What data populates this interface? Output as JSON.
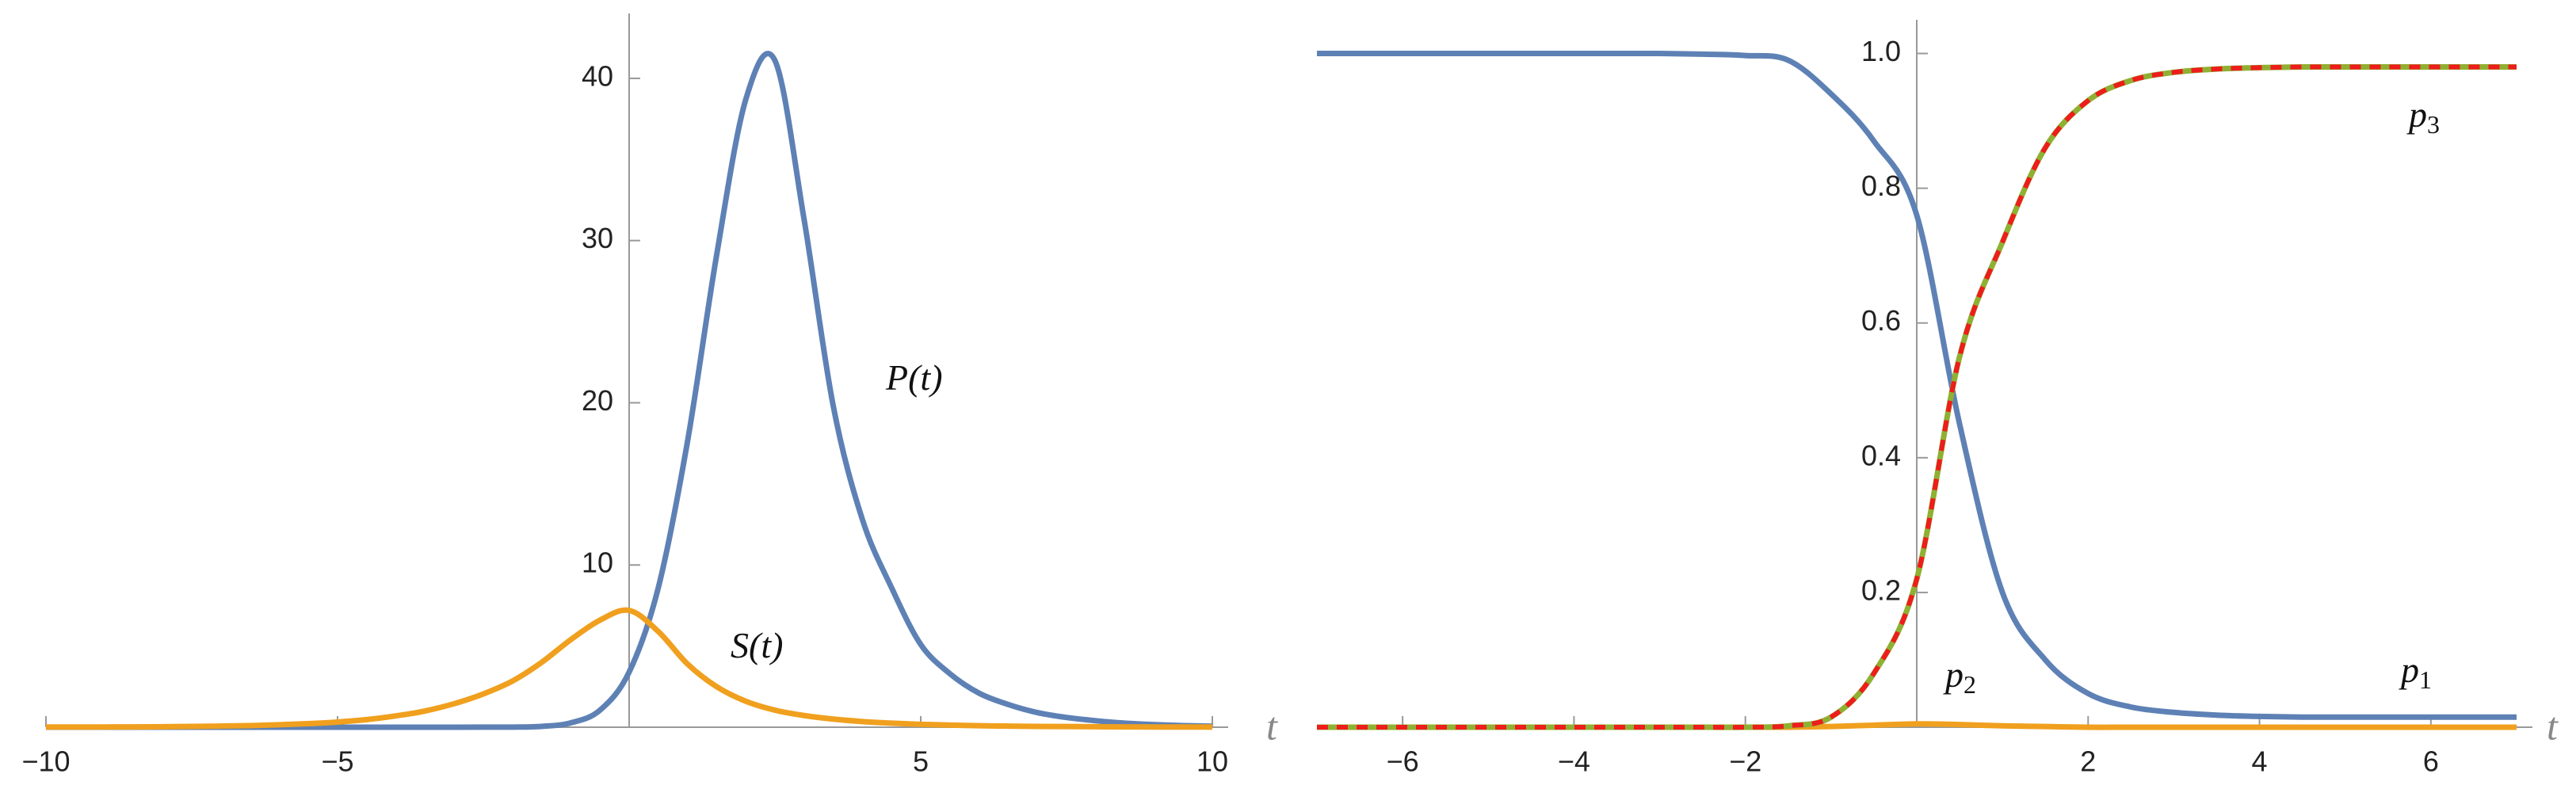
{
  "chart_data": [
    {
      "type": "line",
      "x": [
        -10,
        -9.5,
        -9,
        -8.5,
        -8,
        -7.5,
        -7,
        -6.5,
        -6,
        -5.5,
        -5,
        -4.5,
        -4,
        -3.5,
        -3,
        -2.5,
        -2,
        -1.5,
        -1,
        -0.5,
        0,
        0.5,
        1,
        1.5,
        2,
        2.5,
        3,
        3.5,
        4,
        4.5,
        5,
        5.5,
        6,
        6.5,
        7,
        7.5,
        8,
        8.5,
        9,
        9.5,
        10
      ],
      "series": [
        {
          "color": "#5e81b5",
          "values": [
            0,
            0,
            0,
            0,
            0,
            0,
            0,
            0,
            0,
            0,
            0,
            0,
            0,
            0.001,
            0.002,
            0.004,
            0.009,
            0.05,
            0.27,
            1.05,
            3.4,
            8.6,
            17.6,
            29.1,
            38.7,
            41.1,
            31.3,
            19.8,
            12.8,
            8.6,
            5.1,
            3.3,
            2.1,
            1.4,
            0.9,
            0.6,
            0.4,
            0.25,
            0.16,
            0.1,
            0.06
          ]
        },
        {
          "color": "#f0a01e",
          "values": [
            0.01,
            0.01,
            0.015,
            0.02,
            0.03,
            0.05,
            0.07,
            0.1,
            0.15,
            0.22,
            0.32,
            0.47,
            0.7,
            1.0,
            1.45,
            2.05,
            2.85,
            4.0,
            5.4,
            6.6,
            7.2,
            5.9,
            3.9,
            2.5,
            1.6,
            1.05,
            0.72,
            0.5,
            0.35,
            0.25,
            0.18,
            0.13,
            0.09,
            0.07,
            0.05,
            0.04,
            0.03,
            0.02,
            0.015,
            0.01,
            0.01
          ]
        }
      ],
      "xlim": [
        -10,
        10
      ],
      "ylim": [
        0,
        44
      ],
      "xticks": [
        {
          "value": -10,
          "label": "−10"
        },
        {
          "value": -5,
          "label": "−5"
        },
        5,
        10
      ],
      "yticks": [
        10,
        20,
        30,
        40
      ],
      "x_label": "t",
      "annotations": [
        {
          "text": "P(t)"
        },
        {
          "text": "S(t)"
        }
      ]
    },
    {
      "type": "line",
      "x": [
        -7,
        -6.5,
        -6,
        -5.5,
        -5,
        -4.5,
        -4,
        -3.5,
        -3,
        -2.5,
        -2,
        -1.5,
        -1,
        -0.5,
        0,
        0.5,
        1,
        1.5,
        2,
        2.5,
        3,
        3.5,
        4,
        4.5,
        5,
        5.5,
        6,
        6.5,
        7
      ],
      "series": [
        {
          "color": "#5e81b5",
          "values": [
            1,
            1,
            1,
            1,
            1,
            1,
            1,
            1,
            1,
            0.999,
            0.997,
            0.99,
            0.94,
            0.87,
            0.76,
            0.45,
            0.2,
            0.1,
            0.05,
            0.03,
            0.022,
            0.018,
            0.016,
            0.015,
            0.015,
            0.015,
            0.015,
            0.015,
            0.015
          ]
        },
        {
          "color": "#f0a01e",
          "values": [
            0,
            0,
            0,
            0,
            0,
            0,
            0,
            0,
            0,
            0,
            0,
            0,
            0.001,
            0.003,
            0.005,
            0.004,
            0.002,
            0.001,
            0,
            0,
            0,
            0,
            0,
            0,
            0,
            0,
            0,
            0,
            0
          ]
        },
        {
          "color": "#8fb032",
          "values": [
            0,
            0,
            0,
            0,
            0,
            0,
            0,
            0,
            0,
            0,
            0,
            0.002,
            0.015,
            0.08,
            0.22,
            0.55,
            0.72,
            0.86,
            0.93,
            0.96,
            0.972,
            0.977,
            0.979,
            0.98,
            0.98,
            0.98,
            0.98,
            0.98,
            0.98
          ]
        },
        {
          "color": "#ee1c1c",
          "dashed": true,
          "values": [
            0,
            0,
            0,
            0,
            0,
            0,
            0,
            0,
            0,
            0,
            0,
            0.002,
            0.015,
            0.08,
            0.22,
            0.55,
            0.72,
            0.86,
            0.93,
            0.96,
            0.972,
            0.977,
            0.979,
            0.98,
            0.98,
            0.98,
            0.98,
            0.98,
            0.98
          ]
        }
      ],
      "xlim": [
        -7,
        7
      ],
      "ylim": [
        0,
        1.05
      ],
      "xticks": [
        {
          "value": -6,
          "label": "−6"
        },
        {
          "value": -4,
          "label": "−4"
        },
        {
          "value": -2,
          "label": "−2"
        },
        2,
        4,
        6
      ],
      "yticks": [
        0.2,
        0.4,
        0.6,
        0.8,
        {
          "value": 1,
          "label": "1.0"
        }
      ],
      "x_label": "t",
      "annotations": [
        {
          "text": "p",
          "subscript": "3"
        },
        {
          "text": "p",
          "subscript": "2"
        },
        {
          "text": "p",
          "subscript": "1"
        }
      ]
    }
  ]
}
